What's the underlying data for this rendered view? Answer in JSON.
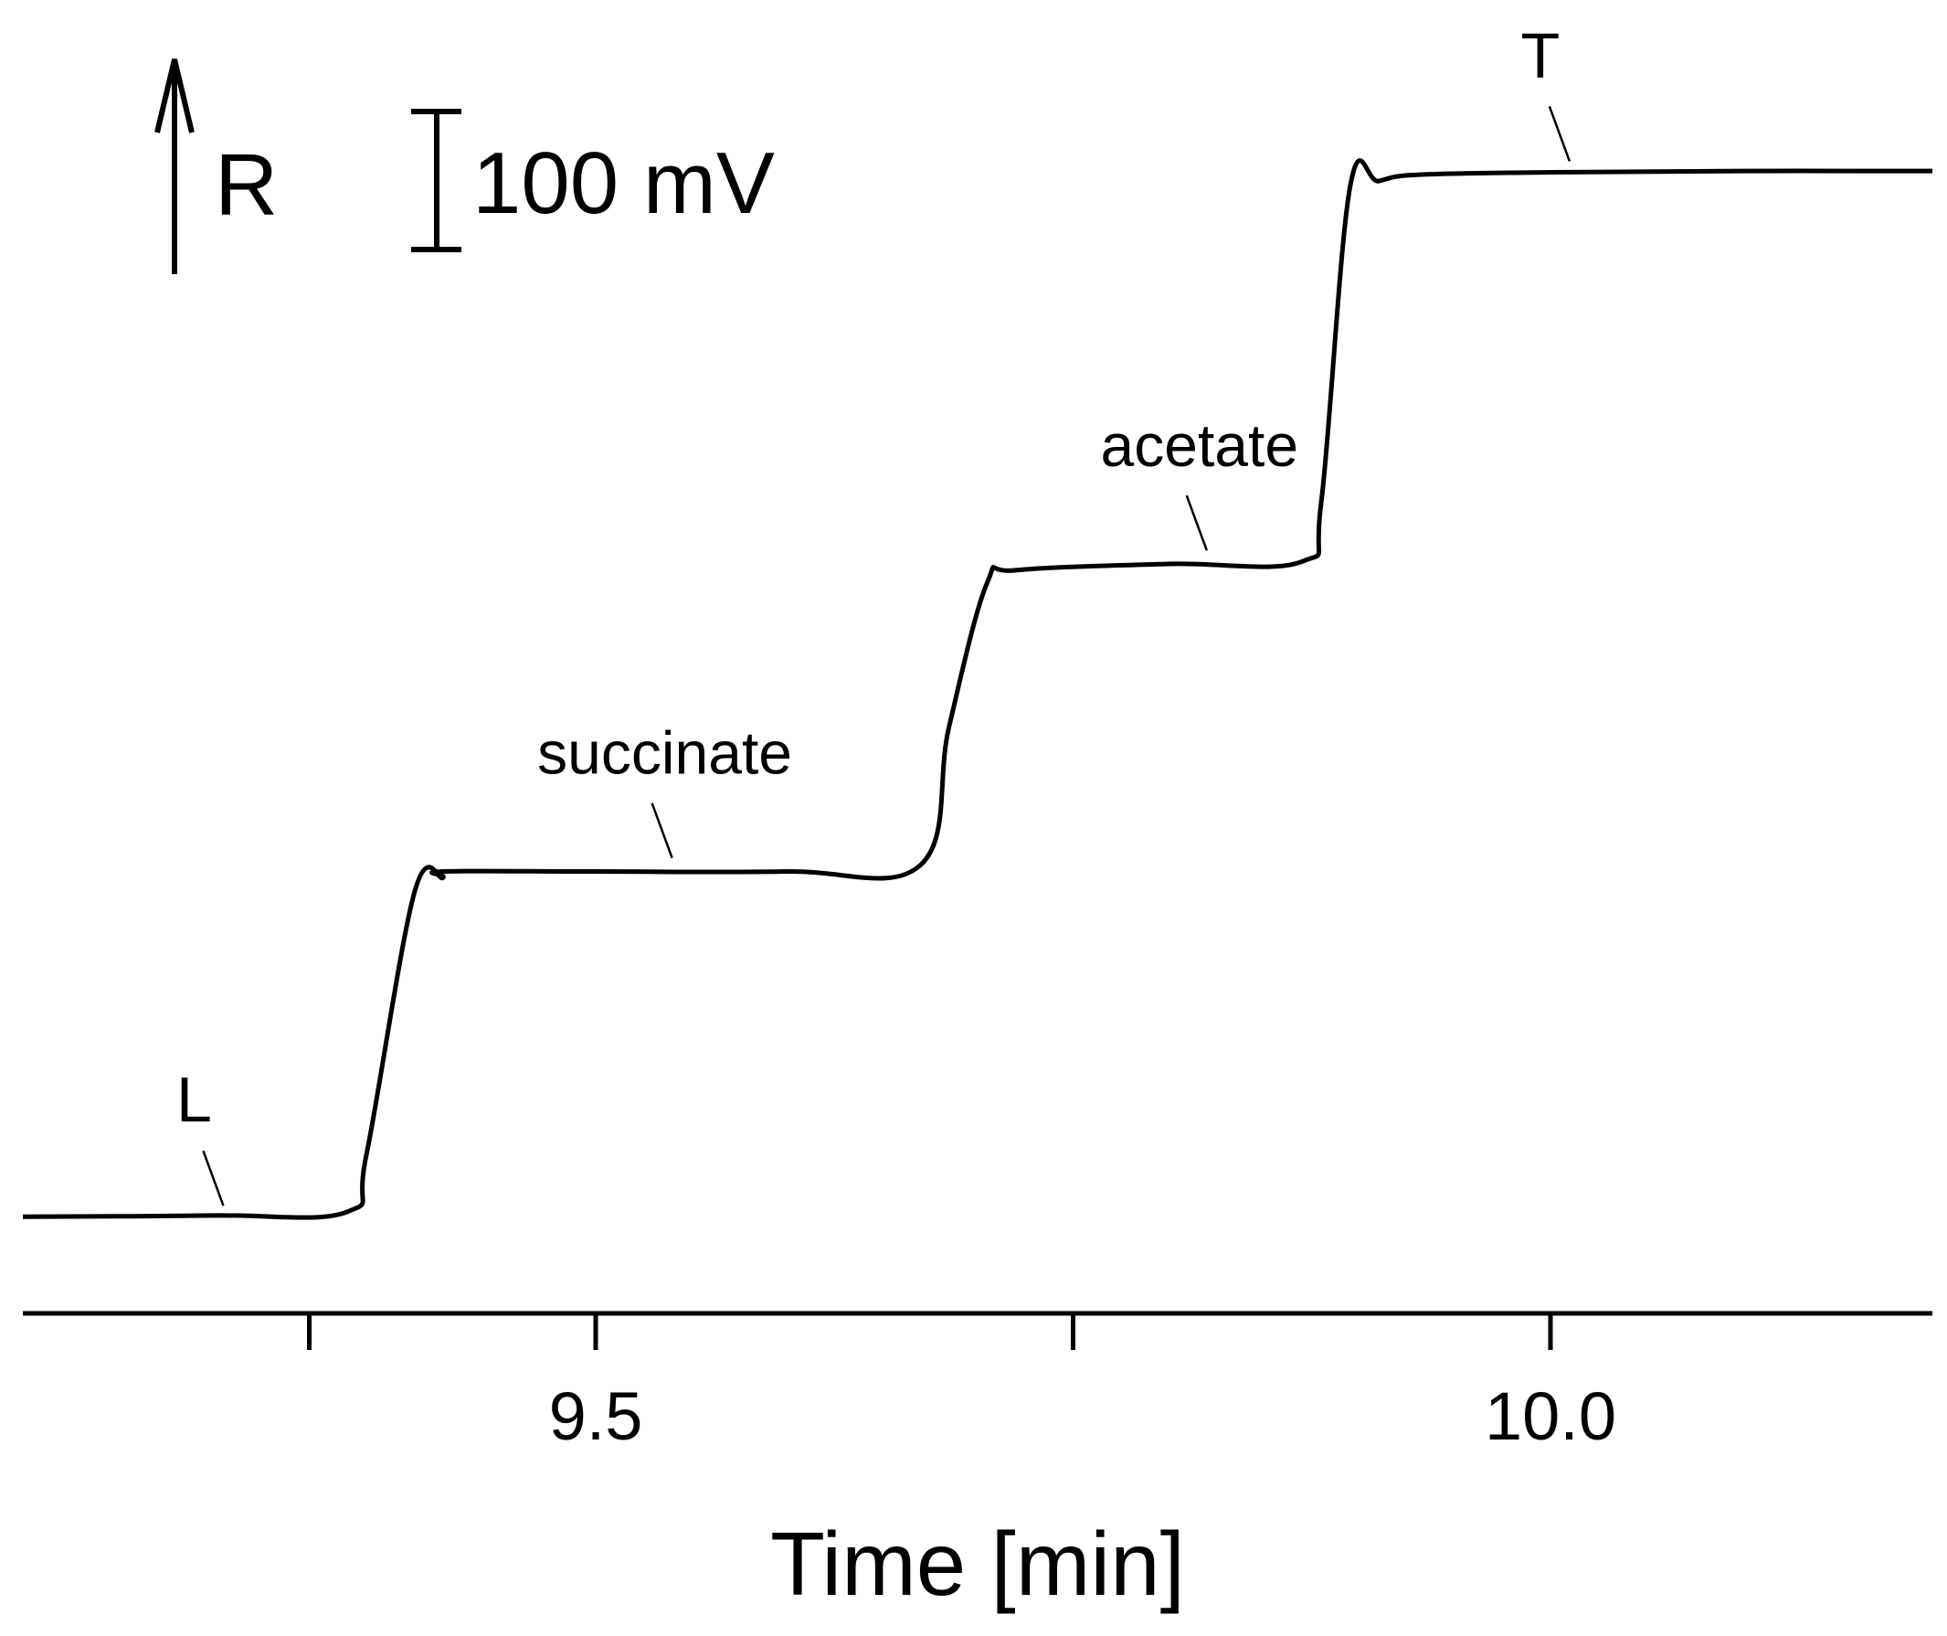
{
  "chart_data": {
    "type": "line",
    "title": "",
    "xlabel": "Time [min]",
    "ylabel": "",
    "xlim": [
      9.2,
      10.2
    ],
    "ylim": [
      0,
      830
    ],
    "x_ticks": [
      9.35,
      9.5,
      9.75,
      10.0
    ],
    "x_tick_labels": [
      {
        "value": 9.5,
        "label": "9.5"
      },
      {
        "value": 10.0,
        "label": "10.0"
      }
    ],
    "grid": false,
    "legend": "none",
    "series": [
      {
        "color": "#000000",
        "x": [
          9.2,
          9.3,
          9.37,
          9.38,
          9.405,
          9.42,
          9.42,
          9.5,
          9.6,
          9.67,
          9.685,
          9.705,
          9.72,
          9.8,
          9.87,
          9.88,
          9.895,
          9.91,
          9.93,
          10.0,
          10.1,
          10.2
        ],
        "y": [
          10,
          11,
          14,
          60,
          268,
          280,
          285,
          285,
          285,
          290,
          400,
          515,
          525,
          530,
          532,
          580,
          830,
          835,
          840,
          842,
          843,
          843
        ]
      }
    ],
    "annotations": [
      {
        "label": "L",
        "x": 9.305,
        "y": 13
      },
      {
        "label": "succinate",
        "x": 9.54,
        "y": 290
      },
      {
        "label": "acetate",
        "x": 9.82,
        "y": 535
      },
      {
        "label": "T",
        "x": 10.01,
        "y": 845
      }
    ],
    "response_arrow_label": "R",
    "scale_bar": {
      "label": "100 mV",
      "value": 100,
      "unit": "mV"
    }
  }
}
